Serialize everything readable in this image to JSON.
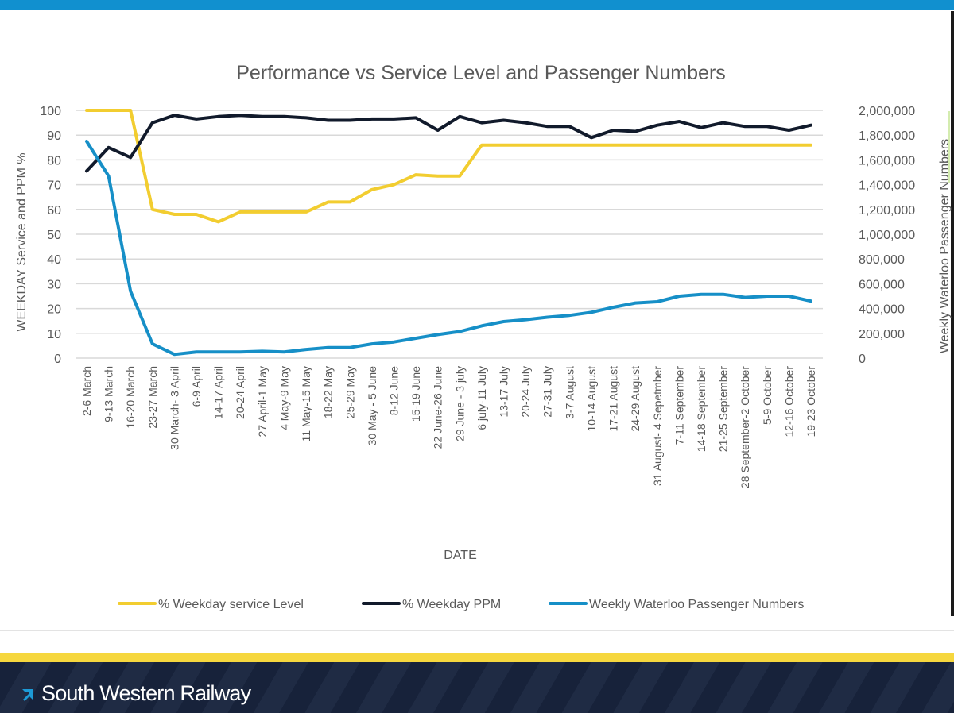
{
  "brand": {
    "name": "South Western Railway",
    "logo_icon": "arrow-up-right-icon",
    "accent": "#1190cf",
    "footer_stripe": "#f6d73e",
    "footer_bg": "#17223a"
  },
  "chart_data": {
    "type": "line",
    "title": "Performance vs Service Level and Passenger Numbers",
    "xlabel": "DATE",
    "ylabel": "WEEKDAY Service and PPM %",
    "y2label": "Weekly Waterloo Passenger Numbers",
    "ylim": [
      0,
      100
    ],
    "y2lim": [
      0,
      2000000
    ],
    "yticks": [
      "0",
      "10",
      "20",
      "30",
      "40",
      "50",
      "60",
      "70",
      "80",
      "90",
      "100"
    ],
    "y2ticks": [
      "0",
      "200,000",
      "400,000",
      "600,000",
      "800,000",
      "1,000,000",
      "1,200,000",
      "1,400,000",
      "1,600,000",
      "1,800,000",
      "2,000,000"
    ],
    "grid": true,
    "legend_position": "bottom",
    "categories": [
      "2-6 March",
      "9-13 March",
      "16-20 March",
      "23-27 March",
      "30 March- 3 April",
      "6-9 April",
      "14-17 April",
      "20-24 April",
      "27 April-1 May",
      "4 May-9 May",
      "11 May-15 May",
      "18-22 May",
      "25-29 May",
      "30 May - 5 June",
      "8-12 June",
      "15-19 June",
      "22 June-26 June",
      "29 June - 3 july",
      "6 july-11 July",
      "13-17 July",
      "20-24 July",
      "27-31 July",
      "3-7 August",
      "10-14 August",
      "17-21 August",
      "24-29 August",
      "31 August- 4 Sepetmber",
      "7-11 September",
      "14-18 September",
      "21-25 September",
      "28 September-2 October",
      "5-9 October",
      "12-16 October",
      "19-23 October"
    ],
    "series": [
      {
        "name": "% Weekday service Level",
        "axis": "left",
        "color": "#f2cd30",
        "values": [
          100,
          100,
          100,
          60,
          58,
          58,
          55,
          59,
          59,
          59,
          59,
          63,
          63,
          68,
          70,
          74,
          73.5,
          73.5,
          86,
          86,
          86,
          86,
          86,
          86,
          86,
          86,
          86,
          86,
          86,
          86,
          86,
          86,
          86,
          86
        ]
      },
      {
        "name": "% Weekday PPM",
        "axis": "left",
        "color": "#111a2b",
        "values": [
          75.5,
          85,
          81,
          95,
          98,
          96.5,
          97.5,
          98,
          97.5,
          97.5,
          97,
          96,
          96,
          96.5,
          96.5,
          97,
          92,
          97.5,
          95,
          96,
          95,
          93.5,
          93.5,
          89,
          92,
          91.5,
          94,
          95.5,
          93,
          95,
          93.5,
          93.5,
          92,
          94
        ]
      },
      {
        "name": "Weekly Waterloo Passenger Numbers",
        "axis": "right",
        "color": "#168fc7",
        "values": [
          1750000,
          1470000,
          540000,
          115000,
          30000,
          50000,
          50000,
          50000,
          55000,
          50000,
          70000,
          85000,
          85000,
          115000,
          130000,
          160000,
          190000,
          215000,
          260000,
          295000,
          310000,
          330000,
          345000,
          370000,
          410000,
          445000,
          455000,
          500000,
          515000,
          515000,
          490000,
          500000,
          500000,
          460000
        ]
      }
    ]
  }
}
